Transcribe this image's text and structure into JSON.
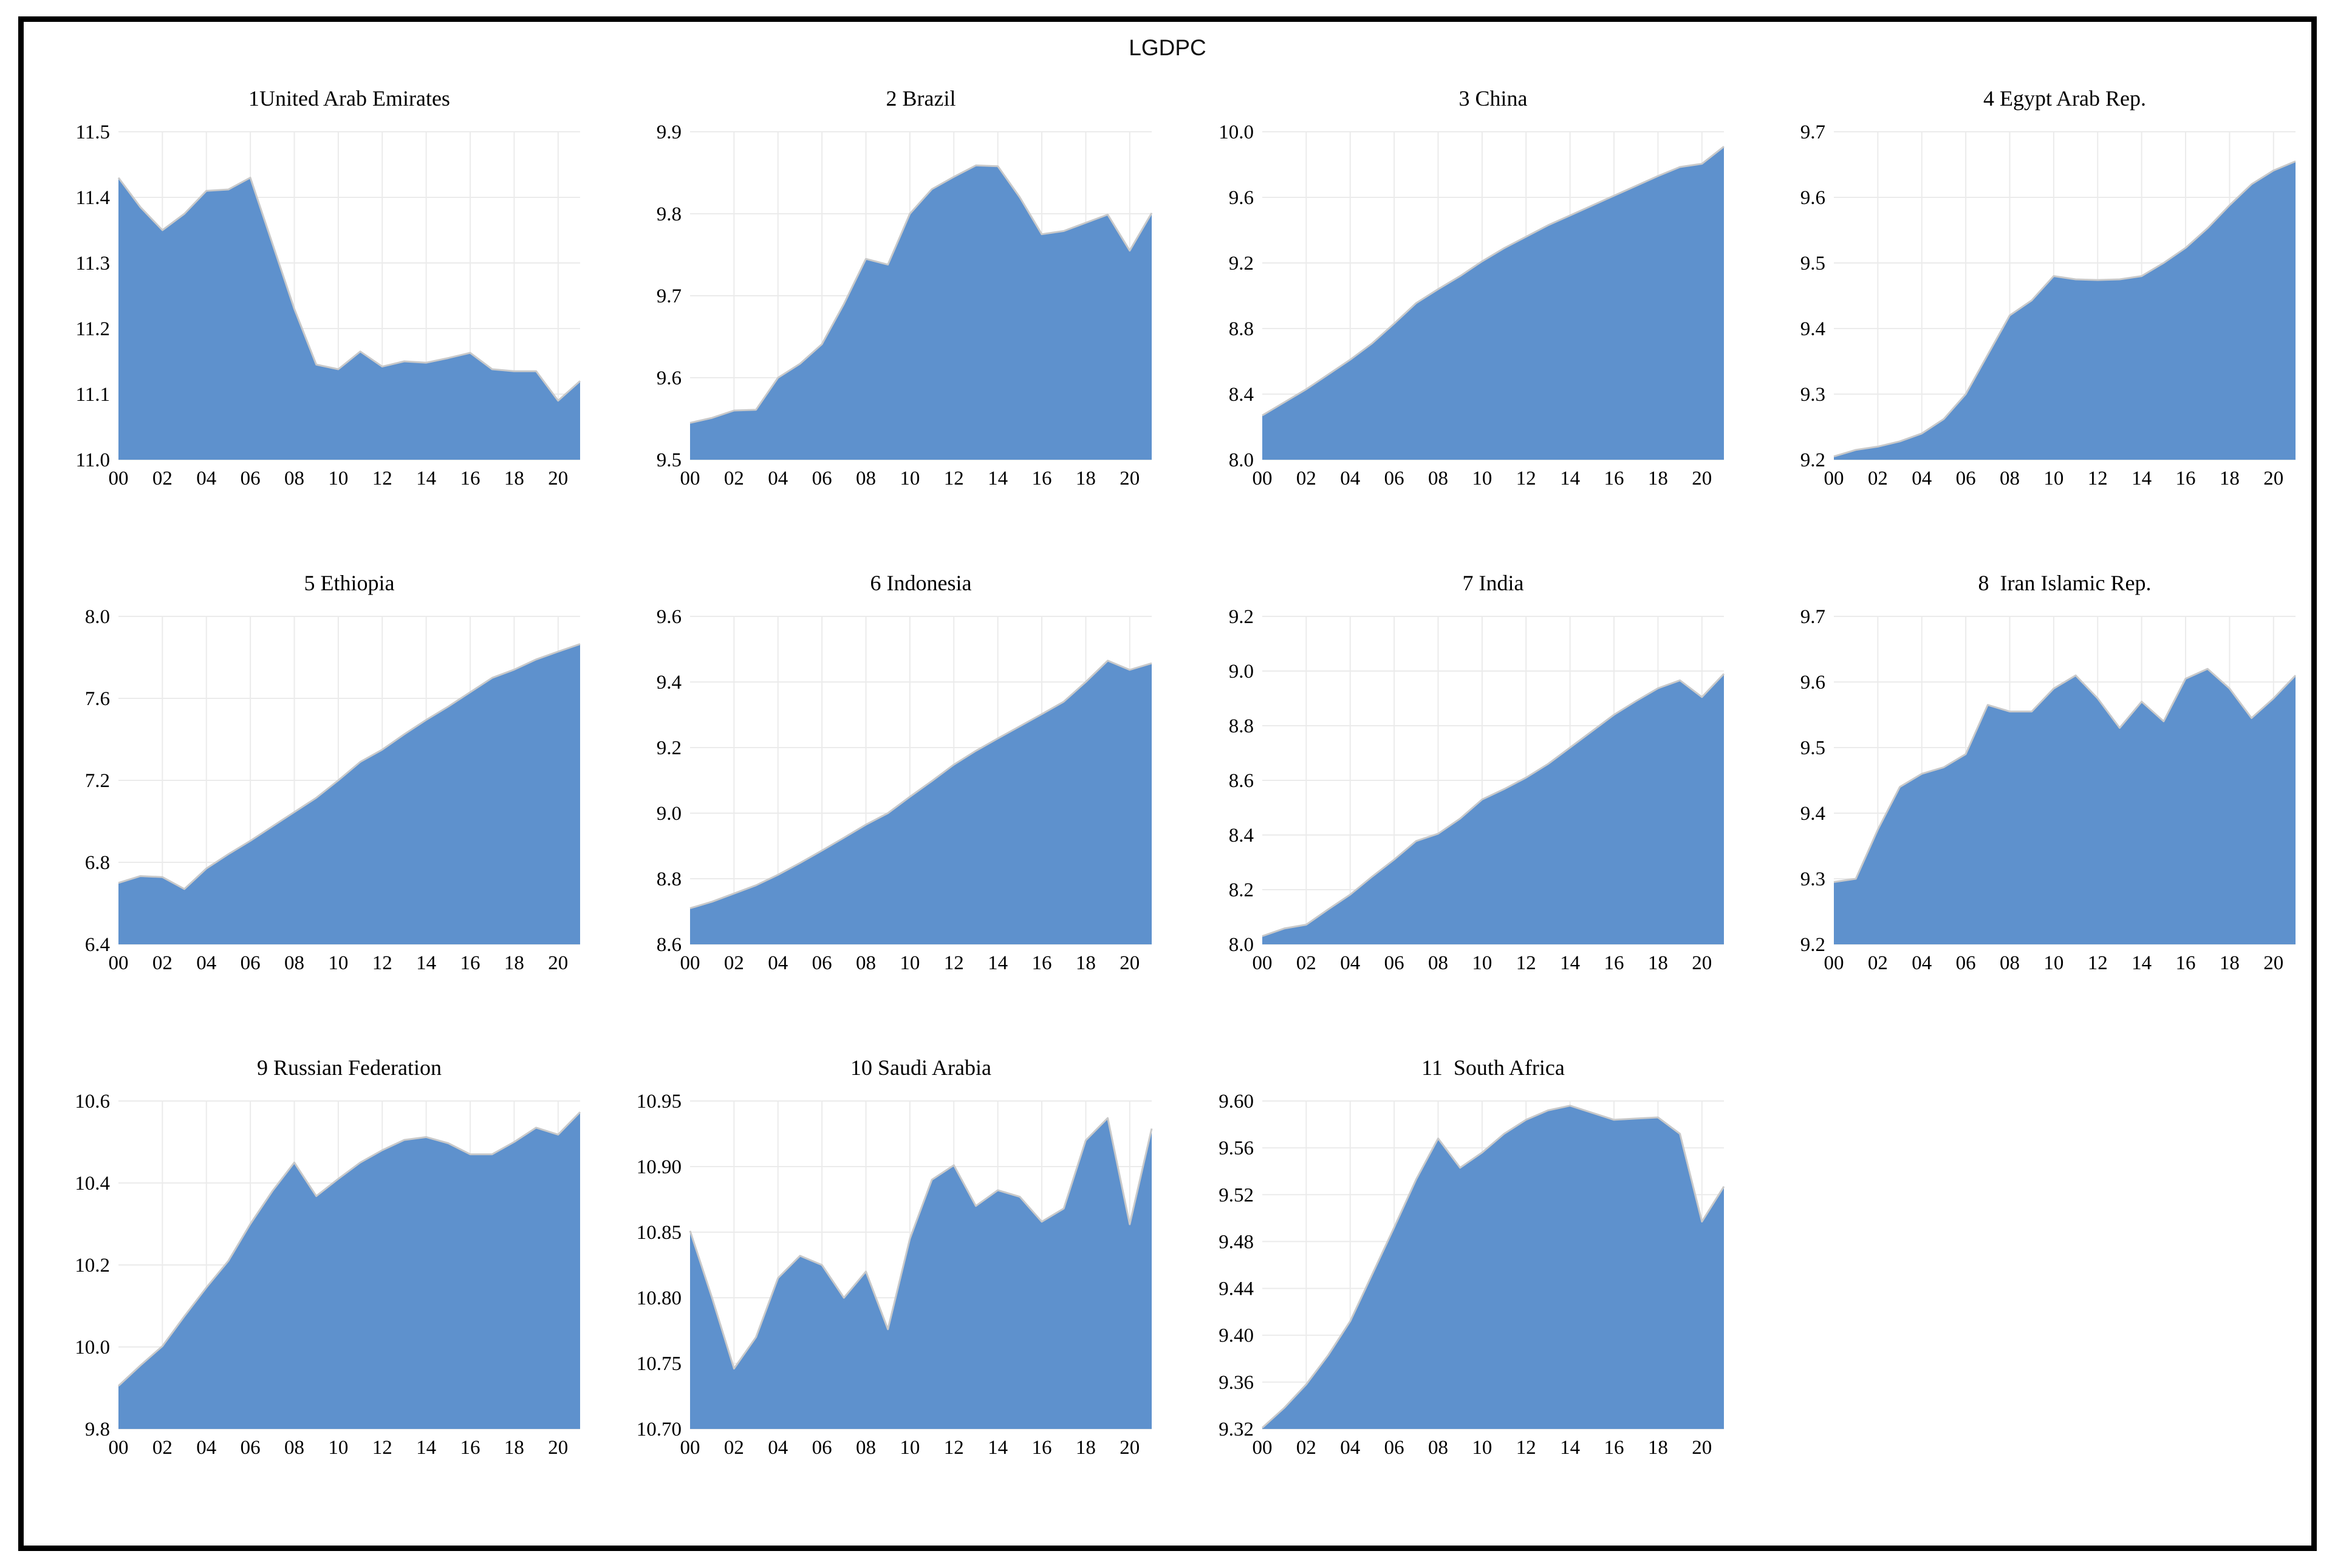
{
  "figure": {
    "title": "LGDPC"
  },
  "style": {
    "area_fill": "#5e91cd",
    "area_edge": "#c9c9c9",
    "grid_color": "#ebebeb",
    "text_color": "#000000",
    "frame_border": "#000000",
    "background": "#ffffff"
  },
  "x_axis": {
    "years": [
      2000,
      2001,
      2002,
      2003,
      2004,
      2005,
      2006,
      2007,
      2008,
      2009,
      2010,
      2011,
      2012,
      2013,
      2014,
      2015,
      2016,
      2017,
      2018,
      2019,
      2020,
      2021
    ],
    "tick_labels": [
      "00",
      "02",
      "04",
      "06",
      "08",
      "10",
      "12",
      "14",
      "16",
      "18",
      "20"
    ],
    "range": [
      2000,
      2021
    ]
  },
  "chart_data": [
    {
      "id": 1,
      "type": "area",
      "title": "1United Arab Emirates",
      "ylim": [
        11.0,
        11.5
      ],
      "yticks": [
        "11.5",
        "11.4",
        "11.3",
        "11.2",
        "11.1",
        "11.0"
      ],
      "values": [
        11.43,
        11.385,
        11.35,
        11.375,
        11.41,
        11.412,
        11.43,
        11.33,
        11.23,
        11.145,
        11.138,
        11.165,
        11.142,
        11.15,
        11.148,
        11.155,
        11.163,
        11.138,
        11.135,
        11.135,
        11.09,
        11.12
      ]
    },
    {
      "id": 2,
      "type": "area",
      "title": "2 Brazil",
      "ylim": [
        9.5,
        9.9
      ],
      "yticks": [
        "9.9",
        "9.8",
        "9.7",
        "9.6",
        "9.5"
      ],
      "values": [
        9.545,
        9.551,
        9.56,
        9.561,
        9.6,
        9.617,
        9.641,
        9.69,
        9.745,
        9.738,
        9.8,
        9.83,
        9.845,
        9.859,
        9.858,
        9.82,
        9.775,
        9.779,
        9.789,
        9.799,
        9.755,
        9.801
      ]
    },
    {
      "id": 3,
      "type": "area",
      "title": "3 China",
      "ylim": [
        8.0,
        10.0
      ],
      "yticks": [
        "10.0",
        "9.6",
        "9.2",
        "8.8",
        "8.4",
        "8.0"
      ],
      "values": [
        8.27,
        8.35,
        8.43,
        8.52,
        8.61,
        8.71,
        8.83,
        8.955,
        9.04,
        9.12,
        9.21,
        9.29,
        9.36,
        9.43,
        9.49,
        9.55,
        9.61,
        9.67,
        9.73,
        9.785,
        9.805,
        9.91
      ]
    },
    {
      "id": 4,
      "type": "area",
      "title": "4 Egypt Arab Rep.",
      "ylim": [
        9.2,
        9.7
      ],
      "yticks": [
        "9.7",
        "9.6",
        "9.5",
        "9.4",
        "9.3",
        "9.2"
      ],
      "values": [
        9.205,
        9.215,
        9.22,
        9.228,
        9.24,
        9.262,
        9.3,
        9.36,
        9.42,
        9.443,
        9.48,
        9.475,
        9.474,
        9.475,
        9.48,
        9.5,
        9.523,
        9.553,
        9.588,
        9.62,
        9.641,
        9.655
      ]
    },
    {
      "id": 5,
      "type": "area",
      "title": "5 Ethiopia",
      "ylim": [
        6.4,
        8.0
      ],
      "yticks": [
        "8.0",
        "7.6",
        "7.2",
        "6.8",
        "6.4"
      ],
      "values": [
        6.7,
        6.733,
        6.728,
        6.67,
        6.77,
        6.84,
        6.905,
        6.975,
        7.045,
        7.115,
        7.2,
        7.29,
        7.35,
        7.425,
        7.495,
        7.56,
        7.63,
        7.7,
        7.74,
        7.79,
        7.828,
        7.865
      ]
    },
    {
      "id": 6,
      "type": "area",
      "title": "6 Indonesia",
      "ylim": [
        8.6,
        9.6
      ],
      "yticks": [
        "9.6",
        "9.4",
        "9.2",
        "9.0",
        "8.8",
        "8.6"
      ],
      "values": [
        8.71,
        8.73,
        8.755,
        8.78,
        8.812,
        8.848,
        8.886,
        8.925,
        8.965,
        9.0,
        9.05,
        9.098,
        9.148,
        9.19,
        9.228,
        9.265,
        9.302,
        9.34,
        9.4,
        9.465,
        9.437,
        9.457
      ]
    },
    {
      "id": 7,
      "type": "area",
      "title": "7 India",
      "ylim": [
        8.0,
        9.2
      ],
      "yticks": [
        "9.2",
        "9.0",
        "8.8",
        "8.6",
        "8.4",
        "8.2",
        "8.0"
      ],
      "values": [
        8.03,
        8.058,
        8.072,
        8.128,
        8.182,
        8.248,
        8.31,
        8.378,
        8.405,
        8.46,
        8.53,
        8.568,
        8.61,
        8.66,
        8.72,
        8.78,
        8.84,
        8.89,
        8.937,
        8.966,
        8.905,
        8.99
      ]
    },
    {
      "id": 8,
      "type": "area",
      "title": "8  Iran Islamic Rep.",
      "ylim": [
        9.2,
        9.7
      ],
      "yticks": [
        "9.7",
        "9.6",
        "9.5",
        "9.4",
        "9.3",
        "9.2"
      ],
      "values": [
        9.295,
        9.3,
        9.375,
        9.44,
        9.46,
        9.47,
        9.49,
        9.565,
        9.555,
        9.555,
        9.59,
        9.61,
        9.575,
        9.53,
        9.57,
        9.54,
        9.605,
        9.62,
        9.59,
        9.545,
        9.575,
        9.61
      ]
    },
    {
      "id": 9,
      "type": "area",
      "title": "9 Russian Federation",
      "ylim": [
        9.8,
        10.6
      ],
      "yticks": [
        "10.6",
        "10.4",
        "10.2",
        "10.0",
        "9.8"
      ],
      "values": [
        9.905,
        9.955,
        10.002,
        10.075,
        10.145,
        10.21,
        10.3,
        10.38,
        10.45,
        10.368,
        10.41,
        10.45,
        10.48,
        10.505,
        10.512,
        10.497,
        10.47,
        10.47,
        10.5,
        10.535,
        10.518,
        10.573
      ]
    },
    {
      "id": 10,
      "type": "area",
      "title": "10 Saudi Arabia",
      "ylim": [
        10.7,
        10.95
      ],
      "yticks": [
        "10.95",
        "10.90",
        "10.85",
        "10.80",
        "10.75",
        "10.70"
      ],
      "values": [
        10.851,
        10.8,
        10.746,
        10.77,
        10.815,
        10.832,
        10.825,
        10.8,
        10.82,
        10.776,
        10.845,
        10.89,
        10.901,
        10.87,
        10.882,
        10.877,
        10.858,
        10.868,
        10.92,
        10.937,
        10.856,
        10.929
      ]
    },
    {
      "id": 11,
      "type": "area",
      "title": "11  South Africa",
      "ylim": [
        9.32,
        9.6
      ],
      "yticks": [
        "9.60",
        "9.56",
        "9.52",
        "9.48",
        "9.44",
        "9.40",
        "9.36",
        "9.32"
      ],
      "values": [
        9.321,
        9.338,
        9.358,
        9.383,
        9.412,
        9.452,
        9.492,
        9.533,
        9.568,
        9.543,
        9.556,
        9.572,
        9.584,
        9.592,
        9.596,
        9.59,
        9.584,
        9.585,
        9.586,
        9.572,
        9.497,
        9.527
      ]
    }
  ]
}
